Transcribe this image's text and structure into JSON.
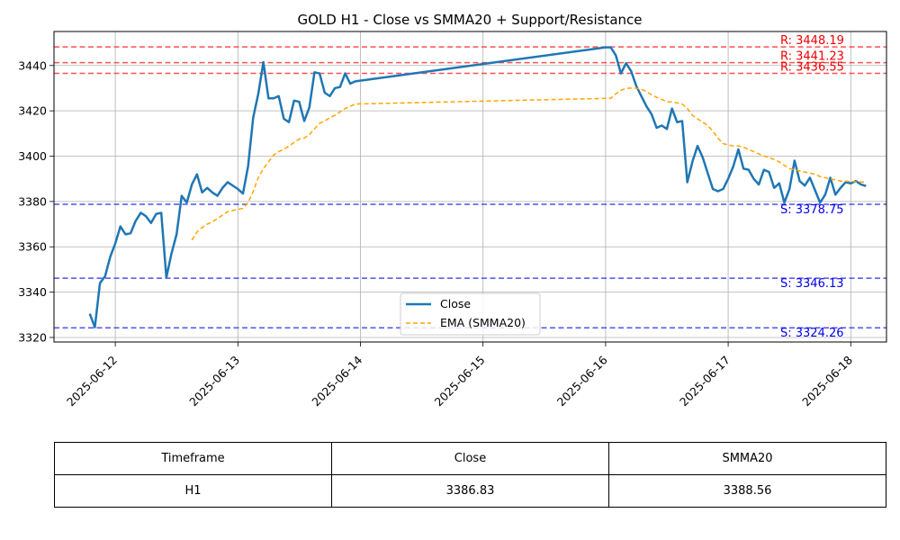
{
  "chart_data": {
    "type": "line",
    "title": "GOLD H1 - Close vs SMMA20 + Support/Resistance",
    "xlabel": "",
    "ylabel": "",
    "ylim": [
      3318,
      3455
    ],
    "xlim": [
      "2025-06-11 12:00",
      "2025-06-18 07:00"
    ],
    "x_ticks": [
      "2025-06-12",
      "2025-06-13",
      "2025-06-14",
      "2025-06-15",
      "2025-06-16",
      "2025-06-17",
      "2025-06-18"
    ],
    "y_ticks": [
      3320,
      3340,
      3360,
      3380,
      3400,
      3420,
      3440
    ],
    "grid": true,
    "legend_position": "bottom-center",
    "series": [
      {
        "name": "Close",
        "color": "#1f77b4",
        "style": "solid",
        "points": [
          [
            "2025-06-11 19:00",
            3330.5
          ],
          [
            "2025-06-11 20:00",
            3324.5
          ],
          [
            "2025-06-11 21:00",
            3344.0
          ],
          [
            "2025-06-11 22:00",
            3347.0
          ],
          [
            "2025-06-11 23:00",
            3355.5
          ],
          [
            "2025-06-12 00:00",
            3361.5
          ],
          [
            "2025-06-12 01:00",
            3369.0
          ],
          [
            "2025-06-12 02:00",
            3365.5
          ],
          [
            "2025-06-12 03:00",
            3366.0
          ],
          [
            "2025-06-12 04:00",
            3371.5
          ],
          [
            "2025-06-12 05:00",
            3375.0
          ],
          [
            "2025-06-12 06:00",
            3373.5
          ],
          [
            "2025-06-12 07:00",
            3370.5
          ],
          [
            "2025-06-12 08:00",
            3374.5
          ],
          [
            "2025-06-12 09:00",
            3375.0
          ],
          [
            "2025-06-12 10:00",
            3346.5
          ],
          [
            "2025-06-12 11:00",
            3357.0
          ],
          [
            "2025-06-12 12:00",
            3365.5
          ],
          [
            "2025-06-12 13:00",
            3382.5
          ],
          [
            "2025-06-12 14:00",
            3379.5
          ],
          [
            "2025-06-12 15:00",
            3387.5
          ],
          [
            "2025-06-12 16:00",
            3392.0
          ],
          [
            "2025-06-12 17:00",
            3384.0
          ],
          [
            "2025-06-12 18:00",
            3386.0
          ],
          [
            "2025-06-12 19:00",
            3384.0
          ],
          [
            "2025-06-12 20:00",
            3382.5
          ],
          [
            "2025-06-12 21:00",
            3386.0
          ],
          [
            "2025-06-12 22:00",
            3388.5
          ],
          [
            "2025-06-12 23:00",
            3387.0
          ],
          [
            "2025-06-13 00:00",
            3385.5
          ],
          [
            "2025-06-13 01:00",
            3383.5
          ],
          [
            "2025-06-13 02:00",
            3395.5
          ],
          [
            "2025-06-13 03:00",
            3417.0
          ],
          [
            "2025-06-13 04:00",
            3427.5
          ],
          [
            "2025-06-13 05:00",
            3441.5
          ],
          [
            "2025-06-13 06:00",
            3425.5
          ],
          [
            "2025-06-13 07:00",
            3425.5
          ],
          [
            "2025-06-13 08:00",
            3426.5
          ],
          [
            "2025-06-13 09:00",
            3416.5
          ],
          [
            "2025-06-13 10:00",
            3415.0
          ],
          [
            "2025-06-13 11:00",
            3424.5
          ],
          [
            "2025-06-13 12:00",
            3424.0
          ],
          [
            "2025-06-13 13:00",
            3415.5
          ],
          [
            "2025-06-13 14:00",
            3421.5
          ],
          [
            "2025-06-13 15:00",
            3437.0
          ],
          [
            "2025-06-13 16:00",
            3436.5
          ],
          [
            "2025-06-13 17:00",
            3428.0
          ],
          [
            "2025-06-13 18:00",
            3426.5
          ],
          [
            "2025-06-13 19:00",
            3430.0
          ],
          [
            "2025-06-13 20:00",
            3430.5
          ],
          [
            "2025-06-13 21:00",
            3436.5
          ],
          [
            "2025-06-13 22:00",
            3432.0
          ],
          [
            "2025-06-13 23:00",
            3433.0
          ],
          [
            "2025-06-16 00:00",
            3448.0
          ],
          [
            "2025-06-16 01:00",
            3448.0
          ],
          [
            "2025-06-16 02:00",
            3444.5
          ],
          [
            "2025-06-16 03:00",
            3436.5
          ],
          [
            "2025-06-16 04:00",
            3441.0
          ],
          [
            "2025-06-16 05:00",
            3437.5
          ],
          [
            "2025-06-16 06:00",
            3431.0
          ],
          [
            "2025-06-16 07:00",
            3426.5
          ],
          [
            "2025-06-16 08:00",
            3422.0
          ],
          [
            "2025-06-16 09:00",
            3418.5
          ],
          [
            "2025-06-16 10:00",
            3412.5
          ],
          [
            "2025-06-16 11:00",
            3413.5
          ],
          [
            "2025-06-16 12:00",
            3412.0
          ],
          [
            "2025-06-16 13:00",
            3421.0
          ],
          [
            "2025-06-16 14:00",
            3415.0
          ],
          [
            "2025-06-16 15:00",
            3415.5
          ],
          [
            "2025-06-16 16:00",
            3388.5
          ],
          [
            "2025-06-16 17:00",
            3397.5
          ],
          [
            "2025-06-16 18:00",
            3404.5
          ],
          [
            "2025-06-16 19:00",
            3399.5
          ],
          [
            "2025-06-16 20:00",
            3392.5
          ],
          [
            "2025-06-16 21:00",
            3385.5
          ],
          [
            "2025-06-16 22:00",
            3384.5
          ],
          [
            "2025-06-16 23:00",
            3385.5
          ],
          [
            "2025-06-17 00:00",
            3390.0
          ],
          [
            "2025-06-17 01:00",
            3395.5
          ],
          [
            "2025-06-17 02:00",
            3403.0
          ],
          [
            "2025-06-17 03:00",
            3394.5
          ],
          [
            "2025-06-17 04:00",
            3394.0
          ],
          [
            "2025-06-17 05:00",
            3390.0
          ],
          [
            "2025-06-17 06:00",
            3387.5
          ],
          [
            "2025-06-17 07:00",
            3394.0
          ],
          [
            "2025-06-17 08:00",
            3393.0
          ],
          [
            "2025-06-17 09:00",
            3386.0
          ],
          [
            "2025-06-17 10:00",
            3388.0
          ],
          [
            "2025-06-17 11:00",
            3379.5
          ],
          [
            "2025-06-17 12:00",
            3385.5
          ],
          [
            "2025-06-17 13:00",
            3398.0
          ],
          [
            "2025-06-17 14:00",
            3389.0
          ],
          [
            "2025-06-17 15:00",
            3387.0
          ],
          [
            "2025-06-17 16:00",
            3390.5
          ],
          [
            "2025-06-17 17:00",
            3385.0
          ],
          [
            "2025-06-17 18:00",
            3379.5
          ],
          [
            "2025-06-17 19:00",
            3383.0
          ],
          [
            "2025-06-17 20:00",
            3390.5
          ],
          [
            "2025-06-17 21:00",
            3383.0
          ],
          [
            "2025-06-17 22:00",
            3386.0
          ],
          [
            "2025-06-17 23:00",
            3388.5
          ],
          [
            "2025-06-18 00:00",
            3388.0
          ],
          [
            "2025-06-18 01:00",
            3389.0
          ],
          [
            "2025-06-18 02:00",
            3387.5
          ],
          [
            "2025-06-18 03:00",
            3386.83
          ]
        ]
      },
      {
        "name": "EMA (SMMA20)",
        "color": "#ffa500",
        "style": "dashed",
        "points": [
          [
            "2025-06-12 15:00",
            3363.0
          ],
          [
            "2025-06-12 16:00",
            3366.5
          ],
          [
            "2025-06-12 17:00",
            3368.5
          ],
          [
            "2025-06-12 18:00",
            3370.0
          ],
          [
            "2025-06-12 19:00",
            3371.0
          ],
          [
            "2025-06-12 20:00",
            3372.5
          ],
          [
            "2025-06-12 21:00",
            3374.0
          ],
          [
            "2025-06-12 22:00",
            3375.5
          ],
          [
            "2025-06-12 23:00",
            3376.0
          ],
          [
            "2025-06-13 00:00",
            3376.5
          ],
          [
            "2025-06-13 01:00",
            3377.0
          ],
          [
            "2025-06-13 02:00",
            3379.5
          ],
          [
            "2025-06-13 03:00",
            3384.5
          ],
          [
            "2025-06-13 04:00",
            3390.5
          ],
          [
            "2025-06-13 05:00",
            3394.5
          ],
          [
            "2025-06-13 06:00",
            3397.5
          ],
          [
            "2025-06-13 07:00",
            3400.5
          ],
          [
            "2025-06-13 08:00",
            3402.0
          ],
          [
            "2025-06-13 09:00",
            3403.0
          ],
          [
            "2025-06-13 10:00",
            3404.5
          ],
          [
            "2025-06-13 11:00",
            3406.0
          ],
          [
            "2025-06-13 12:00",
            3407.5
          ],
          [
            "2025-06-13 13:00",
            3408.0
          ],
          [
            "2025-06-13 14:00",
            3409.5
          ],
          [
            "2025-06-13 15:00",
            3412.0
          ],
          [
            "2025-06-13 16:00",
            3414.5
          ],
          [
            "2025-06-13 17:00",
            3415.5
          ],
          [
            "2025-06-13 18:00",
            3417.0
          ],
          [
            "2025-06-13 19:00",
            3418.0
          ],
          [
            "2025-06-13 20:00",
            3419.5
          ],
          [
            "2025-06-13 21:00",
            3421.0
          ],
          [
            "2025-06-13 22:00",
            3422.0
          ],
          [
            "2025-06-13 23:00",
            3423.0
          ],
          [
            "2025-06-16 00:00",
            3425.5
          ],
          [
            "2025-06-16 01:00",
            3425.5
          ],
          [
            "2025-06-16 02:00",
            3427.5
          ],
          [
            "2025-06-16 03:00",
            3429.0
          ],
          [
            "2025-06-16 04:00",
            3430.0
          ],
          [
            "2025-06-16 05:00",
            3430.0
          ],
          [
            "2025-06-16 06:00",
            3430.0
          ],
          [
            "2025-06-16 07:00",
            3429.5
          ],
          [
            "2025-06-16 08:00",
            3428.5
          ],
          [
            "2025-06-16 09:00",
            3427.0
          ],
          [
            "2025-06-16 10:00",
            3426.0
          ],
          [
            "2025-06-16 11:00",
            3425.0
          ],
          [
            "2025-06-16 12:00",
            3424.0
          ],
          [
            "2025-06-16 13:00",
            3424.0
          ],
          [
            "2025-06-16 14:00",
            3423.5
          ],
          [
            "2025-06-16 15:00",
            3423.0
          ],
          [
            "2025-06-16 16:00",
            3421.0
          ],
          [
            "2025-06-16 17:00",
            3418.0
          ],
          [
            "2025-06-16 18:00",
            3416.5
          ],
          [
            "2025-06-16 19:00",
            3415.0
          ],
          [
            "2025-06-16 20:00",
            3413.5
          ],
          [
            "2025-06-16 21:00",
            3411.0
          ],
          [
            "2025-06-16 22:00",
            3408.0
          ],
          [
            "2025-06-16 23:00",
            3405.5
          ],
          [
            "2025-06-17 00:00",
            3405.0
          ],
          [
            "2025-06-17 01:00",
            3404.5
          ],
          [
            "2025-06-17 02:00",
            3404.5
          ],
          [
            "2025-06-17 03:00",
            3404.0
          ],
          [
            "2025-06-17 04:00",
            3403.0
          ],
          [
            "2025-06-17 05:00",
            3402.0
          ],
          [
            "2025-06-17 06:00",
            3401.0
          ],
          [
            "2025-06-17 07:00",
            3400.0
          ],
          [
            "2025-06-17 08:00",
            3399.5
          ],
          [
            "2025-06-17 09:00",
            3398.5
          ],
          [
            "2025-06-17 10:00",
            3397.5
          ],
          [
            "2025-06-17 11:00",
            3396.0
          ],
          [
            "2025-06-17 12:00",
            3394.5
          ],
          [
            "2025-06-17 13:00",
            3394.0
          ],
          [
            "2025-06-17 14:00",
            3393.5
          ],
          [
            "2025-06-17 15:00",
            3393.0
          ],
          [
            "2025-06-17 16:00",
            3392.5
          ],
          [
            "2025-06-17 17:00",
            3392.0
          ],
          [
            "2025-06-17 18:00",
            3391.0
          ],
          [
            "2025-06-17 19:00",
            3390.5
          ],
          [
            "2025-06-17 20:00",
            3390.0
          ],
          [
            "2025-06-17 21:00",
            3389.5
          ],
          [
            "2025-06-17 22:00",
            3389.0
          ],
          [
            "2025-06-17 23:00",
            3389.0
          ],
          [
            "2025-06-18 00:00",
            3388.8
          ],
          [
            "2025-06-18 01:00",
            3388.7
          ],
          [
            "2025-06-18 02:00",
            3388.6
          ],
          [
            "2025-06-18 03:00",
            3388.56
          ]
        ]
      }
    ],
    "levels": [
      {
        "kind": "resistance",
        "value": 3448.19,
        "label": "R: 3448.19",
        "color": "#ff3333"
      },
      {
        "kind": "resistance",
        "value": 3441.23,
        "label": "R: 3441.23",
        "color": "#ff3333"
      },
      {
        "kind": "resistance",
        "value": 3436.55,
        "label": "R: 3436.55",
        "color": "#ff3333"
      },
      {
        "kind": "support",
        "value": 3378.75,
        "label": "S: 3378.75",
        "color": "#3333ee"
      },
      {
        "kind": "support",
        "value": 3346.13,
        "label": "S: 3346.13",
        "color": "#3333ee"
      },
      {
        "kind": "support",
        "value": 3324.26,
        "label": "S: 3324.26",
        "color": "#3333ee"
      }
    ]
  },
  "table": {
    "headers": [
      "Timeframe",
      "Close",
      "SMMA20"
    ],
    "rows": [
      [
        "H1",
        "3386.83",
        "3388.56"
      ]
    ]
  }
}
